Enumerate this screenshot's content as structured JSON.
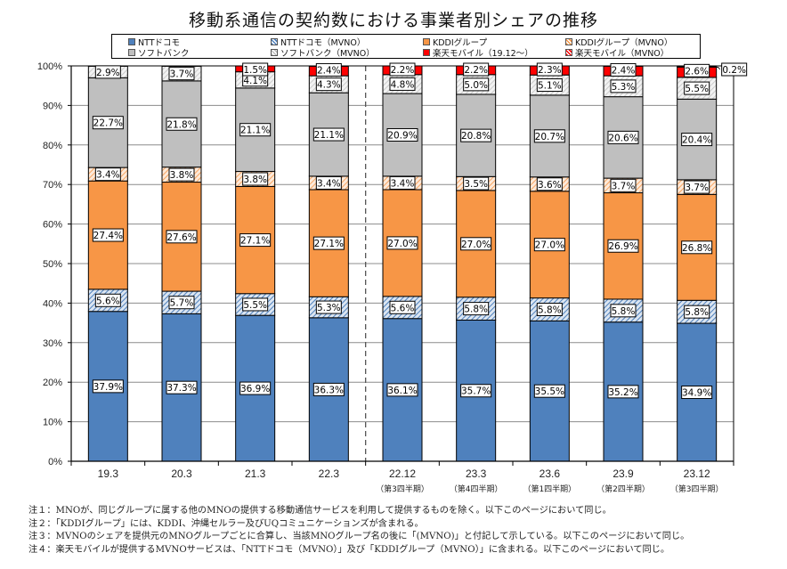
{
  "title": "移動系通信の契約数における事業者別シェアの推移",
  "legend": [
    {
      "key": "docomo",
      "label": "NTTドコモ",
      "color": "#4f81bd",
      "pattern": "solid"
    },
    {
      "key": "docomo_mvno",
      "label": "NTTドコモ（MVNO）",
      "color": "#b8cce4",
      "pattern": "hatch-blue"
    },
    {
      "key": "kddi",
      "label": "KDDIグループ",
      "color": "#f79646",
      "pattern": "solid"
    },
    {
      "key": "kddi_mvno",
      "label": "KDDIグループ（MVNO）",
      "color": "#fbd4b4",
      "pattern": "hatch-orange"
    },
    {
      "key": "softbank",
      "label": "ソフトバンク",
      "color": "#bfbfbf",
      "pattern": "solid"
    },
    {
      "key": "softbank_mvno",
      "label": "ソフトバンク（MVNO）",
      "color": "#e6e6e6",
      "pattern": "hatch-gray"
    },
    {
      "key": "rakuten",
      "label": "楽天モバイル（19.12～）",
      "color": "#ff0000",
      "pattern": "solid"
    },
    {
      "key": "rakuten_mvno",
      "label": "楽天モバイル（MVNO）",
      "color": "#ff9999",
      "pattern": "hatch-red"
    }
  ],
  "chart_data": {
    "type": "bar",
    "stacked": true,
    "title": "移動系通信の契約数における事業者別シェアの推移",
    "xlabel": "",
    "ylabel": "",
    "ylim": [
      0,
      100
    ],
    "yticks": [
      "0%",
      "10%",
      "20%",
      "30%",
      "40%",
      "50%",
      "60%",
      "70%",
      "80%",
      "90%",
      "100%"
    ],
    "grid": true,
    "legend_position": "top",
    "categories": [
      "19.3",
      "20.3",
      "21.3",
      "22.3",
      "22.12",
      "23.3",
      "23.6",
      "23.9",
      "23.12"
    ],
    "category_sublabels": [
      "",
      "",
      "",
      "",
      "（第3四半期）",
      "（第4四半期）",
      "（第1四半期）",
      "（第2四半期）",
      "（第3四半期）"
    ],
    "separator_after_index": 3,
    "series": [
      {
        "name": "NTTドコモ",
        "values": [
          37.9,
          37.3,
          36.9,
          36.3,
          36.1,
          35.7,
          35.5,
          35.2,
          34.9
        ]
      },
      {
        "name": "NTTドコモ（MVNO）",
        "values": [
          5.6,
          5.7,
          5.5,
          5.3,
          5.6,
          5.8,
          5.8,
          5.8,
          5.8
        ]
      },
      {
        "name": "KDDIグループ",
        "values": [
          27.4,
          27.6,
          27.1,
          27.1,
          27.0,
          27.0,
          27.0,
          26.9,
          26.8
        ]
      },
      {
        "name": "KDDIグループ（MVNO）",
        "values": [
          3.4,
          3.8,
          3.8,
          3.4,
          3.4,
          3.5,
          3.6,
          3.7,
          3.7
        ]
      },
      {
        "name": "ソフトバンク",
        "values": [
          22.7,
          21.8,
          21.1,
          21.1,
          20.9,
          20.8,
          20.7,
          20.6,
          20.4
        ]
      },
      {
        "name": "ソフトバンク（MVNO）",
        "values": [
          2.9,
          3.7,
          4.1,
          4.3,
          4.8,
          5.0,
          5.1,
          5.3,
          5.5
        ]
      },
      {
        "name": "楽天モバイル（19.12～）",
        "values": [
          null,
          null,
          1.5,
          2.4,
          2.2,
          2.2,
          2.3,
          2.4,
          2.6
        ]
      },
      {
        "name": "楽天モバイル（MVNO）",
        "values": [
          null,
          null,
          null,
          null,
          null,
          null,
          null,
          null,
          0.2
        ]
      }
    ],
    "data_labels": [
      [
        "37.9%",
        "37.3%",
        "36.9%",
        "36.3%",
        "36.1%",
        "35.7%",
        "35.5%",
        "35.2%",
        "34.9%"
      ],
      [
        "5.6%",
        "5.7%",
        "5.5%",
        "5.3%",
        "5.6%",
        "5.8%",
        "5.8%",
        "5.8%",
        "5.8%"
      ],
      [
        "27.4%",
        "27.6%",
        "27.1%",
        "27.1%",
        "27.0%",
        "27.0%",
        "27.0%",
        "26.9%",
        "26.8%"
      ],
      [
        "3.4%",
        "3.8%",
        "3.8%",
        "3.4%",
        "3.4%",
        "3.5%",
        "3.6%",
        "3.7%",
        "3.7%"
      ],
      [
        "22.7%",
        "21.8%",
        "21.1%",
        "21.1%",
        "20.9%",
        "20.8%",
        "20.7%",
        "20.6%",
        "20.4%"
      ],
      [
        "2.9%",
        "3.7%",
        "4.1%",
        "4.3%",
        "4.8%",
        "5.0%",
        "5.1%",
        "5.3%",
        "5.5%"
      ],
      [
        null,
        null,
        "1.5%",
        "2.4%",
        "2.2%",
        "2.2%",
        "2.3%",
        "2.4%",
        "2.6%"
      ],
      [
        null,
        null,
        null,
        null,
        null,
        null,
        null,
        null,
        "0.2%"
      ]
    ]
  },
  "notes": [
    "注１：MNOが、同じグループに属する他のMNOの提供する移動通信サービスを利用して提供するものを除く。以下このページにおいて同じ。",
    "注２：「KDDIグループ」には、KDDI、沖縄セルラー及びUQコミュニケーションズが含まれる。",
    "注３：MVNOのシェアを提供元のMNOグループごとに合算し、当該MNOグループ名の後に「(MVNO)」と付記して示している。以下このページにおいて同じ。",
    "注４：楽天モバイルが提供するMVNOサービスは、「NTTドコモ（MVNO）」及び「KDDIグループ（MVNO）」に含まれる。以下このページにおいて同じ。"
  ]
}
